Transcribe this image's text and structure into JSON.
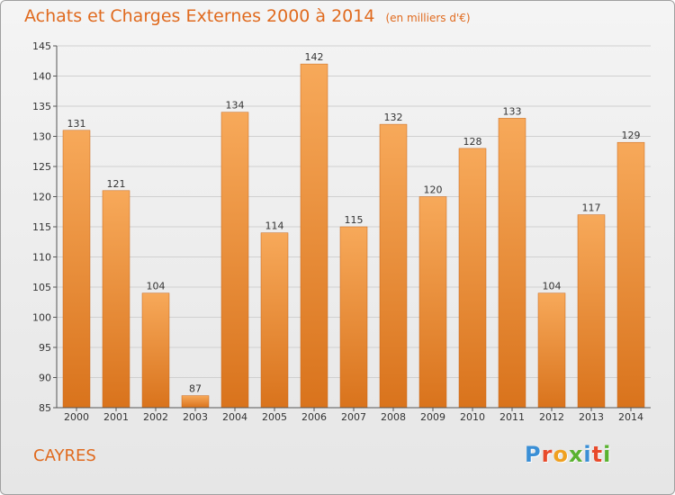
{
  "chart_data": {
    "type": "bar",
    "title": "Achats et Charges Externes 2000 à 2014",
    "subtitle": "(en milliers d'€)",
    "categories": [
      "2000",
      "2001",
      "2002",
      "2003",
      "2004",
      "2005",
      "2006",
      "2007",
      "2008",
      "2009",
      "2010",
      "2011",
      "2012",
      "2013",
      "2014"
    ],
    "values": [
      131,
      121,
      104,
      87,
      134,
      114,
      142,
      115,
      132,
      120,
      128,
      133,
      104,
      117,
      129
    ],
    "ylim": [
      85,
      145
    ],
    "yticks": [
      85,
      90,
      95,
      100,
      105,
      110,
      115,
      120,
      125,
      130,
      135,
      140,
      145
    ],
    "grid": true,
    "bar_color": "#e8822a"
  },
  "location": "CAYRES",
  "logo": {
    "letters": [
      "P",
      "r",
      "o",
      "x",
      "i",
      "t",
      "i"
    ],
    "colors": [
      "#3a8fd6",
      "#e84a2b",
      "#f0a020",
      "#5ab230",
      "#3a8fd6",
      "#e84a2b",
      "#5ab230"
    ]
  }
}
